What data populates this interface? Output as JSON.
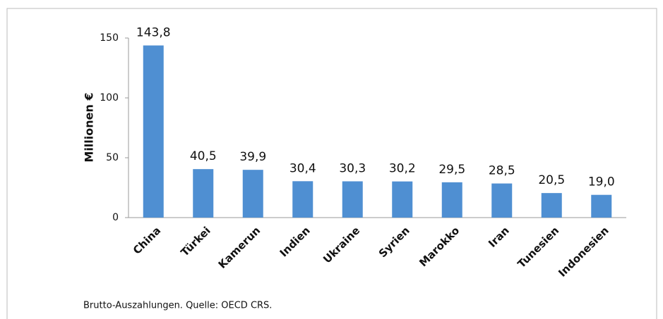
{
  "chart_data": {
    "type": "bar",
    "categories": [
      "China",
      "Türkei",
      "Kamerun",
      "Indien",
      "Ukraine",
      "Syrien",
      "Marokko",
      "Iran",
      "Tunesien",
      "Indonesien"
    ],
    "values": [
      143.8,
      40.5,
      39.9,
      30.4,
      30.3,
      30.2,
      29.5,
      28.5,
      20.5,
      19.0
    ],
    "value_labels": [
      "143,8",
      "40,5",
      "39,9",
      "30,4",
      "30,3",
      "30,2",
      "29,5",
      "28,5",
      "20,5",
      "19,0"
    ],
    "color": "#4f8fd2",
    "y_label": "Millionen €",
    "ylim": [
      0,
      150
    ],
    "yticks": [
      0,
      50,
      100,
      150
    ],
    "grid": false,
    "note": "Brutto-Auszahlungen. Quelle: OECD CRS."
  }
}
